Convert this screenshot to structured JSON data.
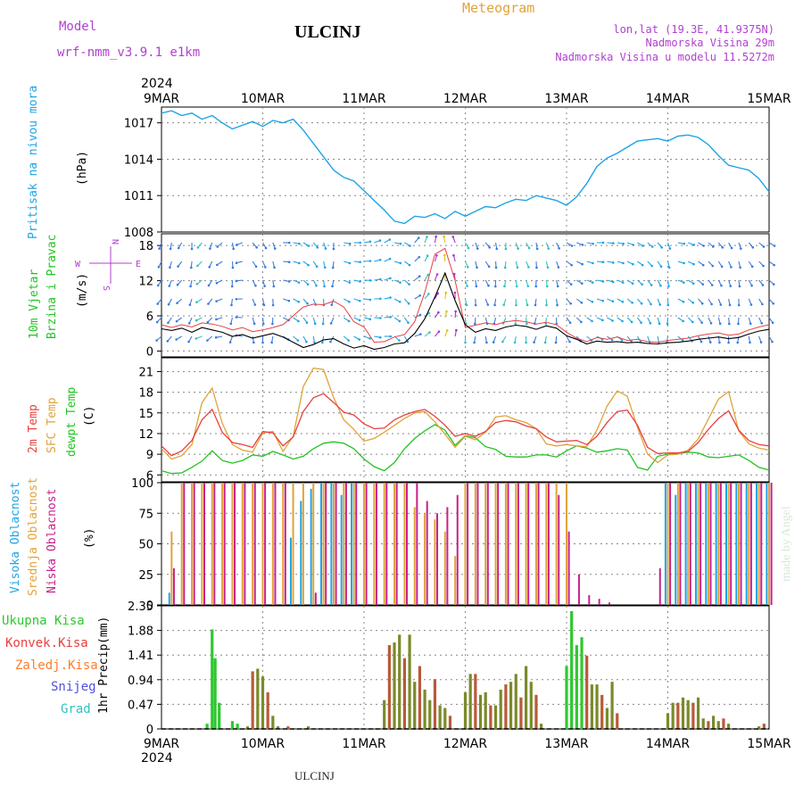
{
  "header": {
    "model_label": "Model",
    "model_name": "wrf-nmm_v3.9.1  e1km",
    "station": "ULCINJ",
    "title": "Meteogram",
    "lonlat": "lon,lat (19.3E, 41.9375N)",
    "elevation": "Nadmorska Visina 29m",
    "model_elevation": "Nadmorska Visina u modelu 11.5272m"
  },
  "footer": {
    "station": "ULCINJ",
    "watermark": "made by Angel"
  },
  "time_axis": {
    "year": "2024",
    "labels": [
      "9MAR",
      "10MAR",
      "11MAR",
      "12MAR",
      "13MAR",
      "14MAR",
      "15MAR"
    ]
  },
  "colors": {
    "pressure": "#1ea4e6",
    "temp2m": "#e84040",
    "sfc_temp": "#e0a33a",
    "dewpt": "#22c322",
    "cloud_high": "#1ea4e6",
    "cloud_mid": "#e0a33a",
    "cloud_low": "#c8208c",
    "precip_total": "#2ec82e",
    "precip_conv": "#e84040",
    "precip_frozen": "#ff7b2e",
    "snow": "#5050e0",
    "hail": "#33c1bf",
    "label_magenta": "#b040d0",
    "title_orange": "#e0a33a"
  },
  "chart_data": [
    {
      "type": "line",
      "panel": "pressure",
      "ylabel_left": "Pritisak na nivou mora",
      "ylabel_unit": "(hPa)",
      "yticks": [
        1008,
        1011,
        1014,
        1017
      ],
      "ylim": [
        1008,
        1018.3
      ],
      "x": [
        0,
        0.1,
        0.2,
        0.3,
        0.4,
        0.5,
        0.6,
        0.7,
        0.8,
        0.9,
        1.0,
        1.1,
        1.2,
        1.3,
        1.4,
        1.5,
        1.6,
        1.7,
        1.8,
        1.9,
        2.0,
        2.1,
        2.2,
        2.3,
        2.4,
        2.5,
        2.6,
        2.7,
        2.8,
        2.9,
        3.0,
        3.1,
        3.2,
        3.3,
        3.4,
        3.5,
        3.6,
        3.7,
        3.8,
        3.9,
        4.0,
        4.1,
        4.2,
        4.3,
        4.4,
        4.5,
        4.6,
        4.7,
        4.8,
        4.9,
        5.0,
        5.1,
        5.2,
        5.3,
        5.4,
        5.5,
        5.6,
        5.7,
        5.8,
        5.9,
        6.0
      ],
      "series": [
        {
          "key": "pressure",
          "values": [
            1017.8,
            1018.0,
            1017.6,
            1017.8,
            1017.3,
            1017.6,
            1017.0,
            1016.5,
            1016.8,
            1017.1,
            1016.7,
            1017.2,
            1017.0,
            1017.3,
            1016.4,
            1015.3,
            1014.2,
            1013.1,
            1012.5,
            1012.2,
            1011.4,
            1010.6,
            1009.8,
            1008.9,
            1008.7,
            1009.3,
            1009.2,
            1009.5,
            1009.1,
            1009.7,
            1009.3,
            1009.7,
            1010.1,
            1010.0,
            1010.4,
            1010.7,
            1010.6,
            1011.0,
            1010.8,
            1010.6,
            1010.2,
            1010.9,
            1012.0,
            1013.4,
            1014.1,
            1014.5,
            1015.0,
            1015.5,
            1015.6,
            1015.7,
            1015.5,
            1015.9,
            1016.0,
            1015.8,
            1015.2,
            1014.3,
            1013.5,
            1013.3,
            1013.1,
            1012.4,
            1011.3
          ]
        }
      ]
    },
    {
      "type": "line",
      "panel": "wind",
      "ylabel_left": "10m Vjetar",
      "ylabel_left2": "Brzina i Pravac",
      "ylabel_unit": "(m/s)",
      "yticks": [
        0,
        6,
        12,
        18
      ],
      "ylim": [
        -1,
        20
      ],
      "compass_labels": [
        "N",
        "W",
        "E",
        "S"
      ],
      "x": [
        0,
        0.1,
        0.2,
        0.3,
        0.4,
        0.5,
        0.6,
        0.7,
        0.8,
        0.9,
        1.0,
        1.1,
        1.2,
        1.3,
        1.4,
        1.5,
        1.6,
        1.7,
        1.8,
        1.9,
        2.0,
        2.1,
        2.2,
        2.3,
        2.4,
        2.5,
        2.6,
        2.7,
        2.8,
        2.9,
        3.0,
        3.1,
        3.2,
        3.3,
        3.4,
        3.5,
        3.6,
        3.7,
        3.8,
        3.9,
        4.0,
        4.1,
        4.2,
        4.3,
        4.4,
        4.5,
        4.6,
        4.7,
        4.8,
        4.9,
        5.0,
        5.1,
        5.2,
        5.3,
        5.4,
        5.5,
        5.6,
        5.7,
        5.8,
        5.9,
        6.0
      ],
      "series": [
        {
          "key": "wind_speed",
          "values": [
            3.8,
            3.5,
            3.9,
            3.2,
            4.0,
            3.6,
            3.2,
            2.5,
            2.8,
            2.2,
            2.6,
            3.0,
            2.4,
            1.5,
            0.6,
            1.1,
            1.9,
            2.1,
            1.2,
            0.5,
            0.9,
            0.3,
            0.6,
            1.2,
            1.4,
            3.0,
            5.5,
            9.2,
            13.3,
            8.6,
            4.5,
            3.2,
            3.8,
            3.5,
            4.1,
            4.4,
            4.2,
            3.7,
            4.3,
            3.9,
            2.6,
            2.0,
            1.2,
            1.7,
            1.5,
            1.6,
            1.4,
            1.5,
            1.3,
            1.2,
            1.4,
            1.5,
            1.7,
            2.0,
            2.2,
            2.4,
            2.1,
            2.3,
            2.9,
            3.4,
            3.7
          ]
        },
        {
          "key": "wind_gust",
          "values": [
            4.5,
            4.0,
            4.5,
            4.1,
            4.8,
            4.6,
            4.2,
            3.6,
            4.0,
            3.3,
            3.6,
            4.0,
            4.5,
            6.0,
            7.5,
            8.0,
            7.9,
            8.5,
            7.5,
            5.0,
            4.1,
            1.5,
            1.6,
            2.4,
            2.8,
            5.0,
            10.0,
            16.5,
            17.5,
            12.0,
            4.0,
            4.4,
            4.8,
            4.5,
            5.0,
            5.2,
            5.0,
            4.6,
            4.9,
            4.5,
            3.2,
            2.2,
            1.6,
            2.3,
            2.0,
            2.4,
            1.8,
            2.0,
            1.6,
            1.5,
            1.8,
            2.0,
            2.2,
            2.6,
            2.9,
            3.1,
            2.7,
            2.9,
            3.6,
            4.1,
            4.5
          ]
        }
      ]
    },
    {
      "type": "line",
      "panel": "temperature",
      "ylabel_left": "2m Temp",
      "ylabel_left2": "SFC Temp",
      "ylabel_left3": "dewpt Temp",
      "ylabel_unit": "(C)",
      "yticks": [
        6,
        9,
        12,
        15,
        18,
        21
      ],
      "ylim": [
        5,
        23
      ],
      "x": [
        0,
        0.1,
        0.2,
        0.3,
        0.4,
        0.5,
        0.6,
        0.7,
        0.8,
        0.9,
        1.0,
        1.1,
        1.2,
        1.3,
        1.4,
        1.5,
        1.6,
        1.7,
        1.8,
        1.9,
        2.0,
        2.1,
        2.2,
        2.3,
        2.4,
        2.5,
        2.6,
        2.7,
        2.8,
        2.9,
        3.0,
        3.1,
        3.2,
        3.3,
        3.4,
        3.5,
        3.6,
        3.7,
        3.8,
        3.9,
        4.0,
        4.1,
        4.2,
        4.3,
        4.4,
        4.5,
        4.6,
        4.7,
        4.8,
        4.9,
        5.0,
        5.1,
        5.2,
        5.3,
        5.4,
        5.5,
        5.6,
        5.7,
        5.8,
        5.9,
        6.0
      ],
      "series": [
        {
          "key": "temp2m",
          "values": [
            10.2,
            8.8,
            9.5,
            11.0,
            14.0,
            15.5,
            12.2,
            10.7,
            10.4,
            10.0,
            12.3,
            12.1,
            10.2,
            11.5,
            15.2,
            17.2,
            17.8,
            16.5,
            15.1,
            14.7,
            13.4,
            12.7,
            12.8,
            14.0,
            14.7,
            15.2,
            15.5,
            14.5,
            13.2,
            11.6,
            12.0,
            11.6,
            12.3,
            13.6,
            13.9,
            13.7,
            13.1,
            12.7,
            11.5,
            10.8,
            10.9,
            11.0,
            10.4,
            11.6,
            13.6,
            15.2,
            15.4,
            13.2,
            10.0,
            9.1,
            9.2,
            9.2,
            9.4,
            10.7,
            12.6,
            14.2,
            15.3,
            12.5,
            11.0,
            10.4,
            10.2
          ]
        },
        {
          "key": "sfc_temp",
          "values": [
            9.8,
            8.3,
            8.8,
            10.4,
            16.5,
            18.6,
            13.5,
            10.4,
            9.6,
            9.3,
            12.1,
            12.3,
            9.4,
            11.6,
            18.8,
            21.5,
            21.3,
            17.2,
            14.0,
            12.6,
            10.9,
            11.3,
            12.2,
            13.2,
            14.2,
            15.0,
            15.2,
            13.7,
            11.9,
            10.0,
            11.6,
            11.1,
            12.2,
            14.4,
            14.6,
            14.0,
            13.6,
            12.7,
            10.5,
            10.2,
            10.4,
            10.2,
            10.1,
            12.5,
            16.0,
            18.2,
            17.4,
            12.9,
            9.0,
            7.8,
            8.9,
            9.0,
            9.6,
            11.2,
            14.1,
            17.0,
            18.1,
            12.4,
            10.5,
            9.9,
            9.6
          ]
        },
        {
          "key": "dewpt",
          "values": [
            6.6,
            6.2,
            6.3,
            7.1,
            8.0,
            9.5,
            8.1,
            7.7,
            8.1,
            8.9,
            8.7,
            9.4,
            8.9,
            8.3,
            8.7,
            9.8,
            10.6,
            10.8,
            10.6,
            9.8,
            8.3,
            7.2,
            6.6,
            7.8,
            9.8,
            11.3,
            12.4,
            13.3,
            12.5,
            10.3,
            11.7,
            11.4,
            10.1,
            9.7,
            8.7,
            8.6,
            8.6,
            8.9,
            8.9,
            8.6,
            9.5,
            10.2,
            9.9,
            9.3,
            9.5,
            9.8,
            9.6,
            7.1,
            6.7,
            8.7,
            9.0,
            9.1,
            9.3,
            9.2,
            8.6,
            8.5,
            8.7,
            8.9,
            8.1,
            7.1,
            6.7
          ]
        }
      ]
    },
    {
      "type": "bar",
      "panel": "clouds",
      "ylabel_left": "Visoka Oblacnost",
      "ylabel_left2": "Srednja Oblacnost",
      "ylabel_left3": "Niska Oblacnost",
      "ylabel_unit": "(%)",
      "yticks": [
        0,
        25,
        50,
        75,
        100
      ],
      "ylim": [
        0,
        100
      ],
      "x": [
        0,
        0.1,
        0.2,
        0.3,
        0.4,
        0.5,
        0.6,
        0.7,
        0.8,
        0.9,
        1.0,
        1.1,
        1.2,
        1.3,
        1.4,
        1.5,
        1.6,
        1.7,
        1.8,
        1.9,
        2.0,
        2.1,
        2.2,
        2.3,
        2.4,
        2.5,
        2.6,
        2.7,
        2.8,
        2.9,
        3.0,
        3.1,
        3.2,
        3.3,
        3.4,
        3.5,
        3.6,
        3.7,
        3.8,
        3.9,
        4.0,
        4.1,
        4.2,
        4.3,
        4.4,
        4.5,
        4.6,
        4.7,
        4.8,
        4.9,
        5.0,
        5.1,
        5.2,
        5.3,
        5.4,
        5.5,
        5.6,
        5.7,
        5.8,
        5.9,
        6.0
      ],
      "series": [
        {
          "key": "cloud_high",
          "name": "Visoka Oblacnost",
          "values": [
            0,
            10,
            0,
            0,
            0,
            0,
            0,
            0,
            0,
            0,
            0,
            0,
            0,
            55,
            85,
            95,
            100,
            100,
            90,
            100,
            0,
            0,
            0,
            0,
            0,
            0,
            0,
            0,
            0,
            0,
            0,
            0,
            0,
            0,
            0,
            0,
            0,
            0,
            0,
            0,
            0,
            0,
            0,
            0,
            0,
            0,
            0,
            0,
            0,
            0,
            100,
            90,
            100,
            100,
            100,
            100,
            100,
            100,
            100,
            100,
            100
          ]
        },
        {
          "key": "cloud_mid",
          "name": "Srednja Oblacnost",
          "values": [
            0,
            60,
            100,
            100,
            100,
            100,
            100,
            100,
            100,
            100,
            100,
            100,
            100,
            100,
            100,
            100,
            100,
            100,
            100,
            100,
            100,
            100,
            100,
            100,
            100,
            80,
            75,
            70,
            60,
            40,
            100,
            100,
            100,
            100,
            100,
            100,
            100,
            100,
            100,
            100,
            100,
            0,
            0,
            0,
            0,
            0,
            0,
            0,
            0,
            0,
            100,
            100,
            100,
            100,
            100,
            100,
            100,
            100,
            100,
            100,
            100
          ]
        },
        {
          "key": "cloud_low",
          "name": "Niska Oblacnost",
          "values": [
            0,
            30,
            100,
            100,
            100,
            100,
            100,
            100,
            100,
            100,
            100,
            100,
            100,
            0,
            0,
            10,
            100,
            100,
            100,
            100,
            100,
            100,
            100,
            100,
            100,
            100,
            85,
            75,
            80,
            90,
            100,
            100,
            100,
            100,
            100,
            100,
            100,
            100,
            100,
            90,
            60,
            25,
            8,
            5,
            2,
            0,
            0,
            0,
            0,
            30,
            100,
            100,
            100,
            100,
            100,
            100,
            100,
            100,
            100,
            100,
            100
          ]
        }
      ]
    },
    {
      "type": "bar",
      "panel": "precipitation",
      "ylabel_left": "1hr Precip",
      "ylabel_unit": "(mm)",
      "yticks": [
        0,
        0.47,
        0.94,
        1.41,
        1.88,
        2.35
      ],
      "ytick_labels": [
        "0",
        "0.47",
        "0.94",
        "1.41",
        "1.88",
        "2.35"
      ],
      "ylim": [
        0,
        2.35
      ],
      "legend": [
        "Ukupna Kisa",
        "Konvek.Kisa",
        "Zaledj.Kisa",
        "Snijeg",
        "Grad"
      ],
      "series": [
        {
          "key": "precip_total",
          "name": "Ukupna Kisa",
          "x": [
            0.45,
            0.5,
            0.53,
            0.57,
            0.7,
            0.75,
            0.85,
            0.9,
            0.95,
            1.0,
            1.05,
            1.1,
            1.15,
            1.25,
            1.45,
            2.2,
            2.25,
            2.3,
            2.35,
            2.4,
            2.45,
            2.5,
            2.55,
            2.6,
            2.65,
            2.7,
            2.75,
            2.8,
            2.85,
            3.0,
            3.05,
            3.1,
            3.15,
            3.2,
            3.25,
            3.3,
            3.35,
            3.4,
            3.45,
            3.5,
            3.55,
            3.6,
            3.65,
            3.7,
            3.75,
            4.0,
            4.05,
            4.1,
            4.15,
            4.2,
            4.25,
            4.3,
            4.35,
            4.4,
            4.45,
            4.5,
            5.0,
            5.05,
            5.1,
            5.15,
            5.2,
            5.25,
            5.3,
            5.35,
            5.4,
            5.45,
            5.5,
            5.55,
            5.6,
            5.9,
            5.95
          ],
          "values": [
            0.1,
            1.9,
            1.35,
            0.5,
            0.15,
            0.1,
            0.05,
            1.1,
            1.15,
            1.0,
            0.7,
            0.25,
            0.05,
            0.05,
            0.05,
            0.55,
            1.6,
            1.65,
            1.8,
            1.35,
            1.8,
            0.9,
            1.2,
            0.75,
            0.55,
            0.95,
            0.45,
            0.4,
            0.25,
            0.7,
            1.05,
            1.05,
            0.65,
            0.7,
            0.45,
            0.45,
            0.75,
            0.85,
            0.9,
            1.05,
            0.6,
            1.2,
            0.9,
            0.65,
            0.1,
            1.2,
            2.25,
            1.6,
            1.75,
            1.4,
            0.85,
            0.85,
            0.65,
            0.4,
            0.9,
            0.3,
            0.3,
            0.5,
            0.5,
            0.6,
            0.55,
            0.5,
            0.6,
            0.2,
            0.15,
            0.25,
            0.15,
            0.2,
            0.1,
            0.05,
            0.1
          ]
        }
      ]
    }
  ]
}
